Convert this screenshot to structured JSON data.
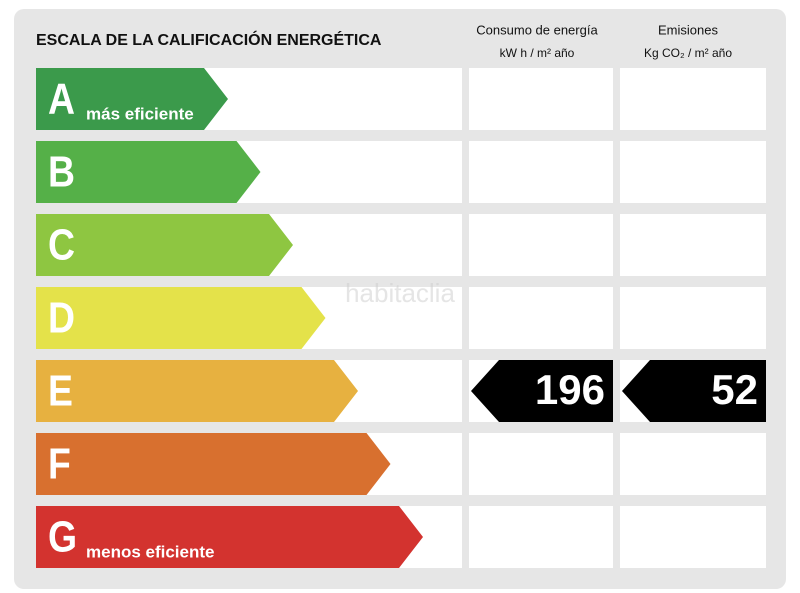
{
  "title": "ESCALA DE LA CALIFICACIÓN ENERGÉTICA",
  "columns": [
    {
      "title": "Consumo de energía",
      "unit": "kW h / m² año",
      "values": [
        null,
        null,
        null,
        null,
        196,
        null,
        null
      ]
    },
    {
      "title": "Emisiones",
      "unit": "Kg CO₂ / m²  año",
      "values": [
        null,
        null,
        null,
        null,
        52,
        null,
        null
      ]
    }
  ],
  "ratings": [
    {
      "letter": "A",
      "note": "más eficiente",
      "color": "#3b9a4b"
    },
    {
      "letter": "B",
      "color": "#55b048"
    },
    {
      "letter": "C",
      "color": "#8ec641"
    },
    {
      "letter": "D",
      "color": "#e4e24a"
    },
    {
      "letter": "E",
      "color": "#e7b140"
    },
    {
      "letter": "F",
      "color": "#d8702f"
    },
    {
      "letter": "G",
      "note": "menos eficiente",
      "color": "#d3332f"
    }
  ],
  "watermark": "habitaclia"
}
